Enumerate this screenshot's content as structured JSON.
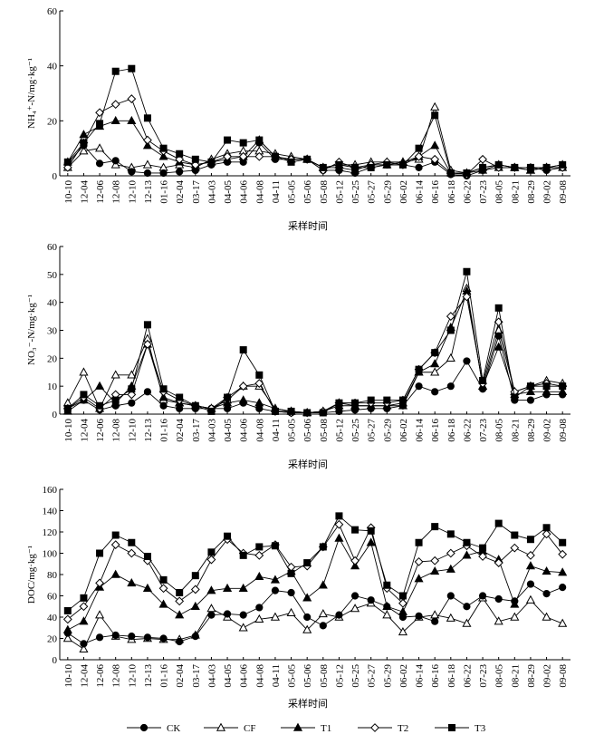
{
  "categories": [
    "10-10",
    "12-04",
    "12-06",
    "12-08",
    "12-10",
    "12-13",
    "01-16",
    "02-04",
    "03-17",
    "04-03",
    "04-05",
    "04-06",
    "04-08",
    "04-11",
    "05-05",
    "05-06",
    "05-08",
    "05-12",
    "05-25",
    "05-27",
    "05-29",
    "06-02",
    "06-14",
    "06-16",
    "06-18",
    "06-22",
    "07-23",
    "08-05",
    "08-21",
    "08-29",
    "09-02",
    "09-08"
  ],
  "legend": [
    {
      "key": "CK",
      "label": "CK",
      "marker": "filled-circle"
    },
    {
      "key": "CF",
      "label": "CF",
      "marker": "open-triangle"
    },
    {
      "key": "T1",
      "label": "T1",
      "marker": "filled-triangle"
    },
    {
      "key": "T2",
      "label": "T2",
      "marker": "open-diamond"
    },
    {
      "key": "T3",
      "label": "T3",
      "marker": "filled-square"
    }
  ],
  "chart_data": [
    {
      "type": "line",
      "ylabel": "NH₄⁺-N/mg·kg⁻¹",
      "xlabel": "采样时间",
      "ylim": [
        0,
        60
      ],
      "yticks": [
        0,
        20,
        40,
        60
      ],
      "series": [
        {
          "name": "CK",
          "values": [
            4.5,
            11,
            4.5,
            5.5,
            1.5,
            1,
            1,
            1.5,
            2,
            4,
            5,
            5,
            12,
            6,
            6,
            6,
            2,
            2,
            1,
            3,
            4,
            4,
            3,
            5,
            0.5,
            0,
            2,
            4,
            3,
            3,
            2,
            3
          ]
        },
        {
          "name": "CF",
          "values": [
            3,
            9,
            10,
            4,
            3,
            4,
            3,
            4,
            3,
            6,
            8,
            9,
            9,
            8,
            7,
            6,
            3,
            4,
            4,
            5,
            5,
            5,
            6,
            25,
            2,
            1,
            3,
            4,
            3,
            2,
            3,
            4
          ]
        },
        {
          "name": "T1",
          "values": [
            5,
            15,
            18,
            20,
            20,
            11,
            7,
            5,
            4,
            5,
            6,
            7,
            13,
            7,
            6,
            6,
            3,
            3,
            2,
            4,
            4,
            5,
            7,
            11,
            1,
            1,
            2,
            3,
            3,
            2,
            3,
            3
          ]
        },
        {
          "name": "T2",
          "values": [
            3,
            12,
            23,
            26,
            28,
            13,
            9,
            6,
            4,
            5,
            7,
            7,
            7,
            7,
            6,
            6,
            2,
            5,
            3,
            4,
            5,
            4,
            7,
            6,
            1,
            0.5,
            6,
            3,
            3,
            3,
            3,
            3
          ]
        },
        {
          "name": "T3",
          "values": [
            5,
            12,
            19,
            38,
            39,
            21,
            10,
            8,
            6,
            5,
            13,
            12,
            13,
            7,
            5,
            6,
            3,
            4,
            3,
            3,
            4,
            4,
            10,
            22,
            1,
            1,
            3,
            4,
            3,
            3,
            3,
            4
          ]
        }
      ]
    },
    {
      "type": "line",
      "ylabel": "NO₃⁻-N/mg·kg⁻¹",
      "xlabel": "采样时间",
      "ylim": [
        0,
        60
      ],
      "yticks": [
        0,
        10,
        20,
        30,
        40,
        50,
        60
      ],
      "series": [
        {
          "name": "CK",
          "values": [
            2,
            5,
            1.5,
            3,
            4,
            8,
            3,
            2,
            2,
            2,
            2,
            4,
            2,
            1,
            0.5,
            0.5,
            0.5,
            1,
            1.5,
            2,
            2,
            3,
            10,
            8,
            10,
            19,
            9,
            28,
            5,
            5,
            7,
            7
          ]
        },
        {
          "name": "CF",
          "values": [
            4,
            15,
            2,
            14,
            14,
            27,
            5,
            4,
            3,
            2,
            5,
            10,
            10,
            2,
            1,
            0.5,
            1,
            4,
            3,
            3,
            3,
            3,
            15,
            15,
            20,
            45,
            10,
            30,
            8,
            10,
            12,
            11
          ]
        },
        {
          "name": "T1",
          "values": [
            1,
            5,
            10,
            4,
            10,
            25,
            6,
            4,
            3,
            2,
            4,
            5,
            4,
            2,
            1,
            0.5,
            1,
            3,
            3,
            3,
            3,
            4,
            15,
            18,
            31,
            44,
            10,
            24,
            7,
            8,
            8,
            8
          ]
        },
        {
          "name": "T2",
          "values": [
            2,
            6,
            2,
            7,
            7,
            25,
            8,
            5,
            3,
            2,
            6,
            10,
            11,
            1,
            0.5,
            0.5,
            1,
            4,
            4,
            4,
            4,
            5,
            16,
            22,
            35,
            42,
            11,
            33,
            8,
            10,
            11,
            10
          ]
        },
        {
          "name": "T3",
          "values": [
            2,
            7,
            3,
            5,
            9,
            32,
            9,
            6,
            3,
            1,
            6,
            23,
            14,
            1,
            1,
            0.5,
            0.5,
            4,
            4,
            5,
            5,
            5,
            16,
            22,
            30,
            51,
            12,
            38,
            6,
            10,
            10,
            10
          ]
        }
      ]
    },
    {
      "type": "line",
      "ylabel": "DOC/mg·kg⁻¹",
      "xlabel": "采样时间",
      "ylim": [
        0,
        160
      ],
      "yticks": [
        0,
        20,
        40,
        60,
        80,
        100,
        120,
        140,
        160
      ],
      "series": [
        {
          "name": "CK",
          "values": [
            25,
            15,
            21,
            23,
            22,
            21,
            20,
            17,
            22,
            42,
            43,
            42,
            49,
            65,
            63,
            40,
            32,
            42,
            60,
            56,
            50,
            40,
            41,
            36,
            60,
            50,
            60,
            57,
            55,
            71,
            62,
            68
          ]
        },
        {
          "name": "CF",
          "values": [
            20,
            10,
            42,
            22,
            19,
            20,
            19,
            19,
            23,
            48,
            40,
            30,
            38,
            40,
            44,
            28,
            43,
            40,
            48,
            53,
            42,
            26,
            40,
            42,
            39,
            34,
            58,
            36,
            40,
            56,
            40,
            34
          ]
        },
        {
          "name": "T1",
          "values": [
            28,
            36,
            68,
            80,
            72,
            67,
            52,
            42,
            50,
            65,
            67,
            67,
            78,
            75,
            83,
            58,
            70,
            114,
            88,
            110,
            50,
            45,
            76,
            83,
            85,
            98,
            102,
            94,
            52,
            88,
            83,
            82
          ]
        },
        {
          "name": "T2",
          "values": [
            38,
            50,
            72,
            108,
            100,
            93,
            67,
            55,
            66,
            94,
            113,
            100,
            98,
            108,
            87,
            88,
            106,
            127,
            93,
            124,
            67,
            53,
            92,
            93,
            100,
            107,
            97,
            91,
            105,
            98,
            118,
            99
          ]
        },
        {
          "name": "T3",
          "values": [
            46,
            58,
            100,
            117,
            110,
            97,
            75,
            63,
            79,
            101,
            116,
            98,
            106,
            107,
            81,
            91,
            106,
            135,
            122,
            121,
            70,
            60,
            110,
            125,
            118,
            110,
            105,
            128,
            117,
            113,
            124,
            110
          ]
        }
      ]
    }
  ]
}
